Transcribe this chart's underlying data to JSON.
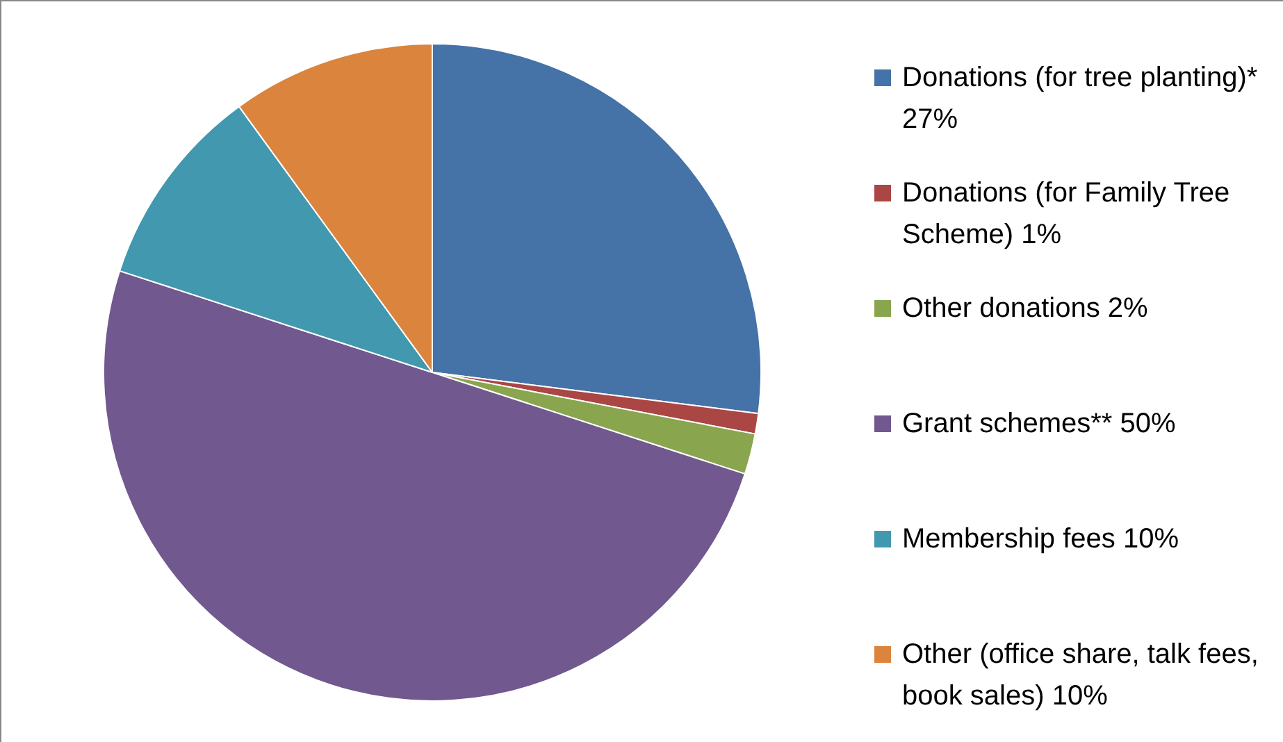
{
  "chart_data": {
    "type": "pie",
    "categories": [
      "Donations (for tree planting)*  27%",
      "Donations (for Family Tree Scheme)  1%",
      "Other donations  2%",
      "Grant schemes**  50%",
      "Membership fees  10%",
      "Other (office share, talk fees, book sales)  10%"
    ],
    "values": [
      27,
      1,
      2,
      50,
      10,
      10
    ],
    "colors": [
      "#4572a7",
      "#aa4643",
      "#89a54e",
      "#71588f",
      "#4198af",
      "#db843d"
    ],
    "legend": "right"
  }
}
